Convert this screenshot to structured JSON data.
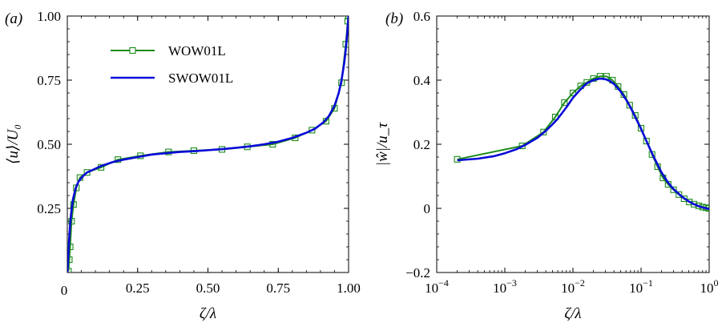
{
  "colors": {
    "wow01l": "#1a8a1a",
    "swow01l": "#0a0ad8",
    "axis": "#000000"
  },
  "chart_data": [
    {
      "panel_label": "(a)",
      "type": "line",
      "xscale": "linear",
      "xlim": [
        0,
        1
      ],
      "ylim": [
        0,
        1
      ],
      "xticks": [
        0,
        0.25,
        0.5,
        0.75,
        1.0
      ],
      "xtick_labels": [
        "0",
        "0.25",
        "0.50",
        "0.75",
        "1.00"
      ],
      "yticks": [
        0.25,
        0.5,
        0.75,
        1.0
      ],
      "ytick_labels": [
        "0.25",
        "0.50",
        "0.75",
        "1.00"
      ],
      "xlabel": "ζ/λ",
      "ylabel": "⟨u⟩/U₀",
      "legend": {
        "placement": "top-left",
        "entries": [
          {
            "name": "WOW01L",
            "marker": "square"
          },
          {
            "name": "SWOW01L",
            "marker": "none"
          }
        ]
      },
      "series": [
        {
          "name": "WOW01L",
          "marker": "square",
          "x": [
            0.004,
            0.007,
            0.01,
            0.015,
            0.022,
            0.032,
            0.045,
            0.07,
            0.12,
            0.18,
            0.26,
            0.36,
            0.45,
            0.55,
            0.64,
            0.73,
            0.81,
            0.87,
            0.92,
            0.95,
            0.975,
            0.99,
            0.997,
            1.0
          ],
          "y": [
            0.005,
            0.05,
            0.1,
            0.2,
            0.265,
            0.33,
            0.37,
            0.39,
            0.41,
            0.44,
            0.455,
            0.47,
            0.475,
            0.48,
            0.49,
            0.5,
            0.525,
            0.555,
            0.59,
            0.64,
            0.74,
            0.89,
            0.98,
            1.0
          ]
        },
        {
          "name": "SWOW01L",
          "marker": "none",
          "x": [
            0.0,
            0.003,
            0.006,
            0.01,
            0.015,
            0.02,
            0.03,
            0.04,
            0.055,
            0.07,
            0.09,
            0.12,
            0.16,
            0.2,
            0.25,
            0.3,
            0.35,
            0.4,
            0.45,
            0.5,
            0.55,
            0.6,
            0.65,
            0.7,
            0.75,
            0.8,
            0.85,
            0.88,
            0.91,
            0.93,
            0.95,
            0.965,
            0.975,
            0.985,
            0.99,
            0.995,
            1.0
          ],
          "y": [
            0.0,
            0.06,
            0.12,
            0.19,
            0.245,
            0.285,
            0.33,
            0.355,
            0.375,
            0.39,
            0.4,
            0.415,
            0.43,
            0.44,
            0.45,
            0.46,
            0.465,
            0.47,
            0.473,
            0.477,
            0.481,
            0.486,
            0.492,
            0.5,
            0.51,
            0.525,
            0.545,
            0.56,
            0.585,
            0.61,
            0.65,
            0.7,
            0.75,
            0.82,
            0.87,
            0.93,
            1.0
          ]
        }
      ]
    },
    {
      "panel_label": "(b)",
      "type": "line",
      "xscale": "log",
      "xlim": [
        0.0001,
        1
      ],
      "ylim": [
        -0.2,
        0.6
      ],
      "xticks": [
        0.0001,
        0.001,
        0.01,
        0.1,
        1
      ],
      "xtick_labels": [
        {
          "base": "10",
          "exp": "−4"
        },
        {
          "base": "10",
          "exp": "−3"
        },
        {
          "base": "10",
          "exp": "−2"
        },
        {
          "base": "10",
          "exp": "−1"
        },
        {
          "base": "10",
          "exp": "0"
        }
      ],
      "yticks": [
        -0.2,
        0,
        0.2,
        0.4,
        0.6
      ],
      "ytick_labels": [
        "−0.2",
        "0",
        "0.2",
        "0.4",
        "0.6"
      ],
      "xlabel": "ζ/λ",
      "ylabel": "|ŵ|/u_τ",
      "series": [
        {
          "name": "WOW01L",
          "marker": "square",
          "x": [
            0.0002,
            0.0018,
            0.0037,
            0.0055,
            0.0075,
            0.01,
            0.013,
            0.016,
            0.02,
            0.025,
            0.031,
            0.038,
            0.046,
            0.056,
            0.068,
            0.082,
            0.1,
            0.12,
            0.145,
            0.175,
            0.21,
            0.25,
            0.3,
            0.36,
            0.43,
            0.51,
            0.6,
            0.7,
            0.8,
            0.9,
            1.0
          ],
          "y": [
            0.153,
            0.195,
            0.238,
            0.285,
            0.33,
            0.36,
            0.382,
            0.393,
            0.405,
            0.412,
            0.412,
            0.4,
            0.38,
            0.355,
            0.322,
            0.29,
            0.25,
            0.21,
            0.168,
            0.13,
            0.095,
            0.075,
            0.058,
            0.043,
            0.03,
            0.02,
            0.013,
            0.008,
            0.004,
            0.002,
            0.0
          ]
        },
        {
          "name": "SWOW01L",
          "marker": "none",
          "x": [
            0.0002,
            0.0004,
            0.0007,
            0.001,
            0.0015,
            0.002,
            0.003,
            0.004,
            0.005,
            0.006,
            0.008,
            0.01,
            0.013,
            0.016,
            0.02,
            0.025,
            0.03,
            0.035,
            0.04,
            0.05,
            0.06,
            0.07,
            0.08,
            0.1,
            0.12,
            0.15,
            0.2,
            0.25,
            0.3,
            0.4,
            0.5,
            0.6,
            0.7,
            0.8,
            1.0
          ],
          "y": [
            0.15,
            0.155,
            0.163,
            0.172,
            0.185,
            0.198,
            0.22,
            0.242,
            0.262,
            0.28,
            0.315,
            0.345,
            0.372,
            0.39,
            0.4,
            0.405,
            0.403,
            0.397,
            0.388,
            0.365,
            0.34,
            0.315,
            0.29,
            0.248,
            0.21,
            0.165,
            0.112,
            0.08,
            0.06,
            0.036,
            0.022,
            0.013,
            0.007,
            0.003,
            -0.002
          ]
        }
      ]
    }
  ]
}
